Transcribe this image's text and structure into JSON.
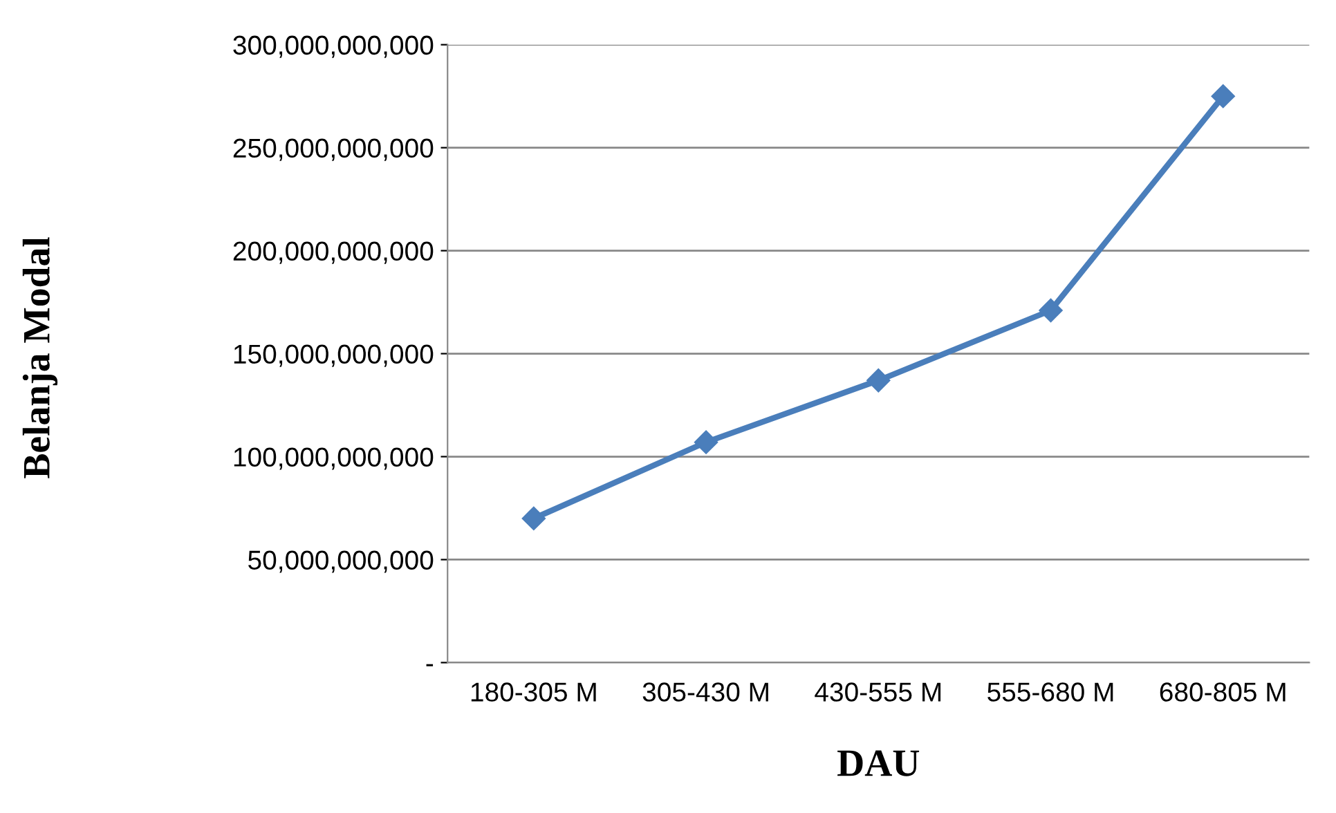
{
  "chart_data": {
    "type": "line",
    "xlabel": "DAU",
    "ylabel": "Belanja Modal",
    "categories": [
      "180-305 M",
      "305-430 M",
      "430-555 M",
      "555-680 M",
      "680-805 M"
    ],
    "series": [
      {
        "color": "#4a7ebb",
        "values": [
          70000000000,
          107000000000,
          137000000000,
          171000000000,
          275000000000
        ]
      }
    ],
    "ylim": [
      0,
      300000000000
    ],
    "yticks": [
      {
        "value": 0,
        "label": "-"
      },
      {
        "value": 50000000000,
        "label": "50,000,000,000"
      },
      {
        "value": 100000000000,
        "label": "100,000,000,000"
      },
      {
        "value": 150000000000,
        "label": "150,000,000,000"
      },
      {
        "value": 200000000000,
        "label": "200,000,000,000"
      },
      {
        "value": 250000000000,
        "label": "250,000,000,000"
      },
      {
        "value": 300000000000,
        "label": "300,000,000,000"
      }
    ],
    "grid": "y",
    "marker": "diamond",
    "line_style": "solid"
  }
}
